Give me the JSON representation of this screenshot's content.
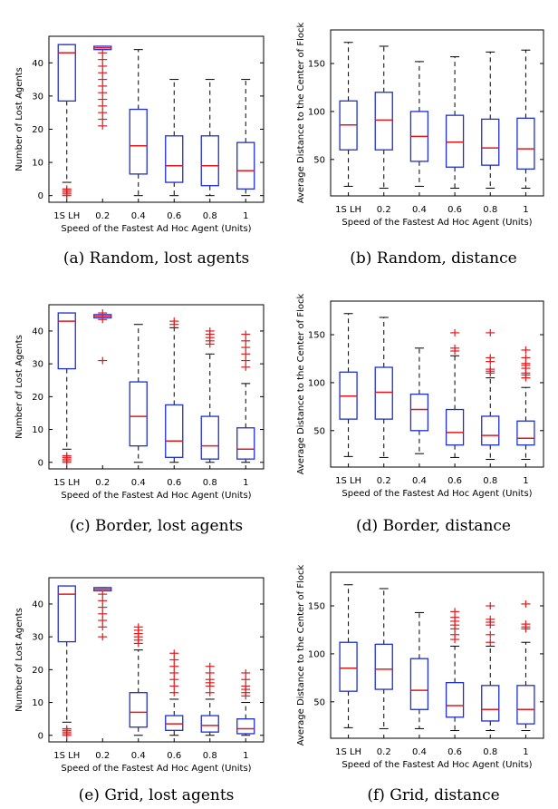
{
  "categories": [
    "1S LH",
    "0.2",
    "0.4",
    "0.6",
    "0.8",
    "1"
  ],
  "chart_data": [
    {
      "type": "box",
      "caption": "(a) Random, lost agents",
      "xlabel": "Speed of the Fastest Ad Hoc Agent (Units)",
      "ylabel": "Number of Lost Agents",
      "ylim": [
        -2,
        48
      ],
      "yticks": [
        0,
        10,
        20,
        30,
        40
      ],
      "boxes": [
        {
          "category": "1S LH",
          "min": 4,
          "q1": 28.5,
          "median": 43,
          "q3": 45.5,
          "max": 45.5,
          "outliers": [
            0,
            0.5,
            1,
            1.5,
            2
          ]
        },
        {
          "category": "0.2",
          "min": 44,
          "q1": 44,
          "median": 44.5,
          "q3": 45,
          "max": 45,
          "outliers": [
            21,
            23,
            25,
            27,
            29,
            31,
            33,
            35,
            37,
            39,
            41,
            43
          ]
        },
        {
          "category": "0.4",
          "min": 0,
          "q1": 6.5,
          "median": 15,
          "q3": 26,
          "max": 44,
          "outliers": []
        },
        {
          "category": "0.6",
          "min": 0,
          "q1": 4,
          "median": 9,
          "q3": 18,
          "max": 35,
          "outliers": []
        },
        {
          "category": "0.8",
          "min": 0,
          "q1": 3,
          "median": 9,
          "q3": 18,
          "max": 35,
          "outliers": []
        },
        {
          "category": "1",
          "min": 0,
          "q1": 2,
          "median": 7.5,
          "q3": 16,
          "max": 35,
          "outliers": []
        }
      ]
    },
    {
      "type": "box",
      "caption": "(b) Random, distance",
      "xlabel": "Speed of the Fastest Ad Hoc Agent (Units)",
      "ylabel": "Average Distance to the Center of Flock",
      "ylim": [
        12,
        185
      ],
      "yticks": [
        50,
        100,
        150
      ],
      "boxes": [
        {
          "category": "1S LH",
          "min": 22,
          "q1": 60,
          "median": 86,
          "q3": 111,
          "max": 172,
          "outliers": []
        },
        {
          "category": "0.2",
          "min": 20,
          "q1": 60,
          "median": 91,
          "q3": 120,
          "max": 168,
          "outliers": []
        },
        {
          "category": "0.4",
          "min": 22,
          "q1": 48,
          "median": 74,
          "q3": 100,
          "max": 152,
          "outliers": []
        },
        {
          "category": "0.6",
          "min": 20,
          "q1": 42,
          "median": 68,
          "q3": 96,
          "max": 157,
          "outliers": []
        },
        {
          "category": "0.8",
          "min": 20,
          "q1": 44,
          "median": 62,
          "q3": 92,
          "max": 162,
          "outliers": []
        },
        {
          "category": "1",
          "min": 20,
          "q1": 40,
          "median": 61,
          "q3": 93,
          "max": 164,
          "outliers": []
        }
      ]
    },
    {
      "type": "box",
      "caption": "(c) Border, lost agents",
      "xlabel": "Speed of the Fastest Ad Hoc Agent (Units)",
      "ylabel": "Number of Lost Agents",
      "ylim": [
        -2,
        48
      ],
      "yticks": [
        0,
        10,
        20,
        30,
        40
      ],
      "boxes": [
        {
          "category": "1S LH",
          "min": 4,
          "q1": 28.5,
          "median": 43,
          "q3": 45.5,
          "max": 45.5,
          "outliers": [
            0,
            0.5,
            1,
            1.5,
            2
          ]
        },
        {
          "category": "0.2",
          "min": 44,
          "q1": 44,
          "median": 44.5,
          "q3": 45,
          "max": 45,
          "outliers": [
            31,
            43.5,
            45.5
          ]
        },
        {
          "category": "0.4",
          "min": 0,
          "q1": 5,
          "median": 14,
          "q3": 24.5,
          "max": 42,
          "outliers": []
        },
        {
          "category": "0.6",
          "min": 0,
          "q1": 1.5,
          "median": 6.5,
          "q3": 17.5,
          "max": 41,
          "outliers": [
            42,
            43
          ]
        },
        {
          "category": "0.8",
          "min": 0,
          "q1": 1,
          "median": 5,
          "q3": 14,
          "max": 33,
          "outliers": [
            36,
            37,
            38,
            39,
            40
          ]
        },
        {
          "category": "1",
          "min": 0,
          "q1": 1,
          "median": 4,
          "q3": 10.5,
          "max": 24,
          "outliers": [
            29,
            31,
            33,
            35,
            37,
            39
          ]
        }
      ]
    },
    {
      "type": "box",
      "caption": "(d) Border, distance",
      "xlabel": "Speed of the Fastest Ad Hoc Agent (Units)",
      "ylabel": "Average Distance to the Center of Flock",
      "ylim": [
        12,
        185
      ],
      "yticks": [
        50,
        100,
        150
      ],
      "boxes": [
        {
          "category": "1S LH",
          "min": 23,
          "q1": 62,
          "median": 86,
          "q3": 111,
          "max": 172,
          "outliers": []
        },
        {
          "category": "0.2",
          "min": 22,
          "q1": 62,
          "median": 90,
          "q3": 116,
          "max": 168,
          "outliers": []
        },
        {
          "category": "0.4",
          "min": 26,
          "q1": 50,
          "median": 72,
          "q3": 88,
          "max": 136,
          "outliers": []
        },
        {
          "category": "0.6",
          "min": 22,
          "q1": 35,
          "median": 48,
          "q3": 72,
          "max": 128,
          "outliers": [
            133,
            136,
            152
          ]
        },
        {
          "category": "0.8",
          "min": 20,
          "q1": 35,
          "median": 45,
          "q3": 65,
          "max": 105,
          "outliers": [
            110,
            112,
            114,
            122,
            126,
            152
          ]
        },
        {
          "category": "1",
          "min": 20,
          "q1": 35,
          "median": 42,
          "q3": 60,
          "max": 95,
          "outliers": [
            105,
            108,
            110,
            115,
            118,
            120,
            126,
            134
          ]
        }
      ]
    },
    {
      "type": "box",
      "caption": "(e) Grid, lost agents",
      "xlabel": "Speed of the Fastest Ad Hoc Agent (Units)",
      "ylabel": "Number of Lost Agents",
      "ylim": [
        -2,
        48
      ],
      "yticks": [
        0,
        10,
        20,
        30,
        40
      ],
      "boxes": [
        {
          "category": "1S LH",
          "min": 4,
          "q1": 28.5,
          "median": 43,
          "q3": 45.5,
          "max": 45.5,
          "outliers": [
            0,
            0.5,
            1,
            1.5,
            2
          ]
        },
        {
          "category": "0.2",
          "min": 44,
          "q1": 44,
          "median": 44.5,
          "q3": 45,
          "max": 45,
          "outliers": [
            30,
            33,
            35,
            37,
            39,
            41,
            43
          ]
        },
        {
          "category": "0.4",
          "min": 0,
          "q1": 2.5,
          "median": 7,
          "q3": 13,
          "max": 26,
          "outliers": [
            28,
            29,
            30,
            31,
            32,
            33
          ]
        },
        {
          "category": "0.6",
          "min": 0,
          "q1": 1.5,
          "median": 3.5,
          "q3": 6,
          "max": 11,
          "outliers": [
            13,
            15,
            17,
            19,
            21,
            23,
            25
          ]
        },
        {
          "category": "0.8",
          "min": 0,
          "q1": 1,
          "median": 3,
          "q3": 6,
          "max": 11,
          "outliers": [
            13,
            15,
            16,
            17,
            19,
            21
          ]
        },
        {
          "category": "1",
          "min": 0,
          "q1": 0.5,
          "median": 2,
          "q3": 5,
          "max": 10,
          "outliers": [
            12,
            13,
            14,
            15,
            17,
            19
          ]
        }
      ]
    },
    {
      "type": "box",
      "caption": "(f) Grid, distance",
      "xlabel": "Speed of the Fastest Ad Hoc Agent (Units)",
      "ylabel": "Average Distance to the Center of Flock",
      "ylim": [
        12,
        185
      ],
      "yticks": [
        50,
        100,
        150
      ],
      "boxes": [
        {
          "category": "1S LH",
          "min": 23,
          "q1": 61,
          "median": 85,
          "q3": 112,
          "max": 172,
          "outliers": []
        },
        {
          "category": "0.2",
          "min": 22,
          "q1": 63,
          "median": 84,
          "q3": 110,
          "max": 168,
          "outliers": []
        },
        {
          "category": "0.4",
          "min": 22,
          "q1": 42,
          "median": 62,
          "q3": 95,
          "max": 143,
          "outliers": []
        },
        {
          "category": "0.6",
          "min": 20,
          "q1": 34,
          "median": 46,
          "q3": 70,
          "max": 108,
          "outliers": [
            115,
            120,
            126,
            130,
            134,
            138,
            144
          ]
        },
        {
          "category": "0.8",
          "min": 20,
          "q1": 30,
          "median": 42,
          "q3": 67,
          "max": 108,
          "outliers": [
            112,
            120,
            130,
            133,
            136,
            150
          ]
        },
        {
          "category": "1",
          "min": 20,
          "q1": 27,
          "median": 42,
          "q3": 67,
          "max": 112,
          "outliers": [
            126,
            128,
            131,
            152
          ]
        }
      ]
    }
  ],
  "colors": {
    "box": "#1f2fd0",
    "median": "#e31a1c",
    "outlier": "#e31a1c",
    "whisker": "#000000",
    "axis": "#000000"
  }
}
